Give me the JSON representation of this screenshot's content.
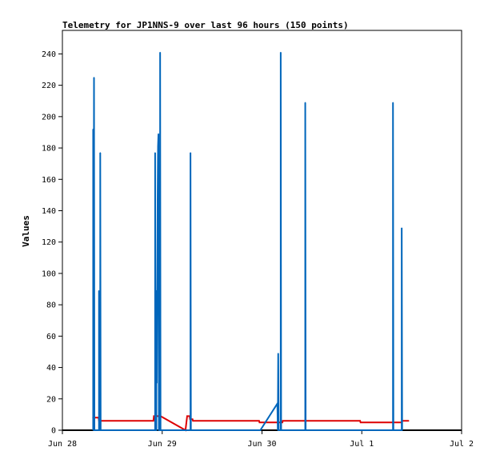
{
  "chart_data": {
    "type": "line",
    "title": "Telemetry for JP1NNS-9 over last 96 hours (150 points)",
    "xlabel": "",
    "ylabel": "Values",
    "ylim": [
      0,
      255
    ],
    "yticks": [
      0,
      20,
      40,
      60,
      80,
      100,
      120,
      140,
      160,
      180,
      200,
      220,
      240
    ],
    "xlim": [
      0,
      96
    ],
    "xticks": [
      {
        "label": "Jun 28",
        "value": 0
      },
      {
        "label": "Jun 29",
        "value": 24
      },
      {
        "label": "Jun 30",
        "value": 48
      },
      {
        "label": "Jul 1",
        "value": 72
      },
      {
        "label": "Jul 2",
        "value": 96
      }
    ],
    "grid": false,
    "legend": "none",
    "series": [
      {
        "color": "#dd0000",
        "points": [
          [
            7.3,
            8
          ],
          [
            8.7,
            8
          ],
          [
            8.8,
            6
          ],
          [
            21.9,
            6
          ],
          [
            22.0,
            9
          ],
          [
            23.6,
            9
          ],
          [
            29.6,
            0
          ],
          [
            30.0,
            9
          ],
          [
            30.6,
            9
          ],
          [
            30.7,
            7
          ],
          [
            31.3,
            7
          ],
          [
            31.4,
            6
          ],
          [
            47.3,
            6
          ],
          [
            47.4,
            5
          ],
          [
            52.9,
            5
          ],
          [
            53.0,
            6
          ],
          [
            71.6,
            6
          ],
          [
            71.7,
            5
          ],
          [
            81.6,
            5
          ],
          [
            81.7,
            6
          ],
          [
            83.3,
            6
          ]
        ]
      },
      {
        "color": "#0066bb",
        "points": [
          [
            7.4,
            0
          ],
          [
            7.4,
            192
          ],
          [
            7.5,
            0
          ],
          [
            7.6,
            225
          ],
          [
            7.7,
            0
          ],
          [
            8.8,
            0
          ],
          [
            8.8,
            89
          ],
          [
            8.9,
            0
          ],
          [
            9.1,
            0
          ],
          [
            9.1,
            177
          ],
          [
            9.2,
            0
          ],
          [
            22.3,
            0
          ],
          [
            22.3,
            177
          ],
          [
            22.4,
            0
          ],
          [
            22.6,
            0
          ],
          [
            22.6,
            89
          ],
          [
            22.7,
            30
          ],
          [
            22.9,
            147
          ],
          [
            23.0,
            181
          ],
          [
            23.1,
            189
          ],
          [
            23.2,
            0
          ],
          [
            23.5,
            0
          ],
          [
            23.5,
            241
          ],
          [
            23.6,
            0
          ],
          [
            30.8,
            0
          ],
          [
            30.8,
            177
          ],
          [
            30.9,
            0
          ],
          [
            47.6,
            0
          ],
          [
            51.7,
            17
          ],
          [
            51.8,
            0
          ],
          [
            51.9,
            49
          ],
          [
            52.0,
            0
          ],
          [
            52.5,
            0
          ],
          [
            52.5,
            241
          ],
          [
            52.6,
            0
          ],
          [
            58.4,
            0
          ],
          [
            58.4,
            209
          ],
          [
            58.5,
            0
          ],
          [
            79.5,
            0
          ],
          [
            79.5,
            209
          ],
          [
            79.6,
            0
          ],
          [
            81.6,
            0
          ],
          [
            81.6,
            129
          ],
          [
            81.7,
            0
          ]
        ]
      }
    ]
  }
}
